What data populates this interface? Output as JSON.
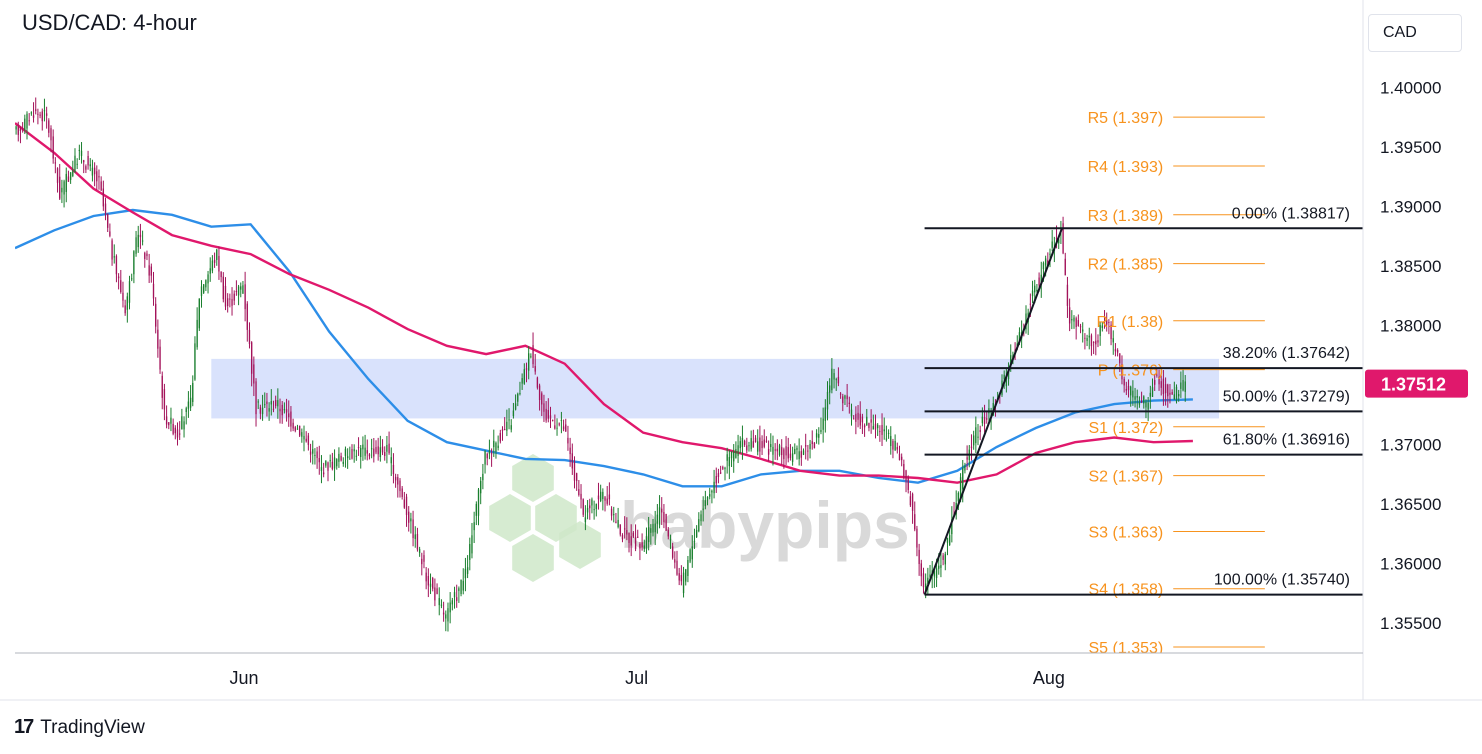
{
  "title": "USD/CAD: 4-hour",
  "currency_button": "CAD",
  "brand": {
    "name": "TradingView",
    "mark": "17",
    "watermark": "babypips"
  },
  "colors": {
    "background": "#ffffff",
    "bull": "#1a7f2e",
    "bear": "#a3135a",
    "ma_fast": "#2d8ee8",
    "ma_slow": "#e0186c",
    "pivot": "#f7931e",
    "zone": "#c9d6fb",
    "price_tag": "#e0186c",
    "fib": "#131722",
    "grid": "#e0e3eb"
  },
  "chart_data": {
    "type": "candlestick",
    "timeframe": "4-hour",
    "ylim": [
      1.3525,
      1.4065
    ],
    "x_ticks": [
      {
        "label": "Jun",
        "day": 17.5
      },
      {
        "label": "Jul",
        "day": 47.5
      },
      {
        "label": "Aug",
        "day": 79
      }
    ],
    "y_ticks": [
      1.355,
      1.36,
      1.365,
      1.37,
      1.375,
      1.38,
      1.385,
      1.39,
      1.395,
      1.4
    ],
    "y_tick_labels": [
      "1.35500",
      "1.36000",
      "1.36500",
      "1.37000",
      "1.37500",
      "1.38000",
      "1.38500",
      "1.39000",
      "1.39500",
      "1.40000"
    ],
    "x_range_days": [
      0,
      103
    ],
    "current_price": 1.37512,
    "current_price_label": "1.37512",
    "price_path": [
      [
        0,
        1.396
      ],
      [
        1.5,
        1.398
      ],
      [
        2.5,
        1.3975
      ],
      [
        3.5,
        1.391
      ],
      [
        5,
        1.3945
      ],
      [
        6.5,
        1.392
      ],
      [
        7.5,
        1.386
      ],
      [
        8.5,
        1.3815
      ],
      [
        9,
        1.3845
      ],
      [
        9.5,
        1.388
      ],
      [
        10.5,
        1.384
      ],
      [
        11.5,
        1.3725
      ],
      [
        12.5,
        1.371
      ],
      [
        13.5,
        1.3735
      ],
      [
        14.2,
        1.383
      ],
      [
        15.5,
        1.386
      ],
      [
        16.2,
        1.3815
      ],
      [
        17.5,
        1.3835
      ],
      [
        18.5,
        1.373
      ],
      [
        20,
        1.3735
      ],
      [
        22,
        1.371
      ],
      [
        23.5,
        1.368
      ],
      [
        26,
        1.3695
      ],
      [
        28.5,
        1.3695
      ],
      [
        30,
        1.3645
      ],
      [
        31.5,
        1.359
      ],
      [
        33,
        1.3555
      ],
      [
        34.5,
        1.359
      ],
      [
        36,
        1.369
      ],
      [
        38,
        1.372
      ],
      [
        39.5,
        1.378
      ],
      [
        40.5,
        1.3725
      ],
      [
        42,
        1.3715
      ],
      [
        43.5,
        1.364
      ],
      [
        45,
        1.366
      ],
      [
        46.5,
        1.3625
      ],
      [
        48,
        1.3615
      ],
      [
        49.5,
        1.3645
      ],
      [
        51,
        1.358
      ],
      [
        52.5,
        1.3645
      ],
      [
        54,
        1.368
      ],
      [
        55.5,
        1.37
      ],
      [
        57,
        1.37
      ],
      [
        59.5,
        1.369
      ],
      [
        61.5,
        1.3705
      ],
      [
        62.5,
        1.376
      ],
      [
        64,
        1.3725
      ],
      [
        66,
        1.3715
      ],
      [
        67.5,
        1.3695
      ],
      [
        68.5,
        1.3655
      ],
      [
        69.5,
        1.358
      ],
      [
        71,
        1.3605
      ],
      [
        73,
        1.37
      ],
      [
        75,
        1.3735
      ],
      [
        76.5,
        1.378
      ],
      [
        78,
        1.383
      ],
      [
        80,
        1.3882
      ],
      [
        80.6,
        1.3805
      ],
      [
        82.5,
        1.3785
      ],
      [
        83.5,
        1.3805
      ],
      [
        85,
        1.3745
      ],
      [
        86.5,
        1.3735
      ],
      [
        87.2,
        1.3755
      ],
      [
        88.5,
        1.374
      ],
      [
        89.5,
        1.3751
      ]
    ],
    "series": [
      {
        "name": "",
        "type": "moving-average",
        "color": "#2d8ee8",
        "points": [
          [
            0,
            1.3865
          ],
          [
            3,
            1.388
          ],
          [
            6,
            1.3892
          ],
          [
            9,
            1.3897
          ],
          [
            12,
            1.3893
          ],
          [
            15,
            1.3883
          ],
          [
            18,
            1.3885
          ],
          [
            21,
            1.3845
          ],
          [
            24,
            1.3795
          ],
          [
            27,
            1.3755
          ],
          [
            30,
            1.372
          ],
          [
            33,
            1.3702
          ],
          [
            36,
            1.3695
          ],
          [
            39,
            1.3688
          ],
          [
            42,
            1.3687
          ],
          [
            45,
            1.3682
          ],
          [
            48,
            1.3675
          ],
          [
            51,
            1.3665
          ],
          [
            54,
            1.3665
          ],
          [
            57,
            1.3675
          ],
          [
            60,
            1.3678
          ],
          [
            63,
            1.3678
          ],
          [
            66,
            1.3672
          ],
          [
            69,
            1.3668
          ],
          [
            72,
            1.3678
          ],
          [
            75,
            1.3698
          ],
          [
            78,
            1.3714
          ],
          [
            81,
            1.3727
          ],
          [
            84,
            1.3734
          ],
          [
            87,
            1.3737
          ],
          [
            90,
            1.3738
          ]
        ]
      },
      {
        "name": "",
        "type": "moving-average",
        "color": "#e0186c",
        "points": [
          [
            0,
            1.397
          ],
          [
            3,
            1.3945
          ],
          [
            6,
            1.3915
          ],
          [
            9,
            1.3895
          ],
          [
            12,
            1.3876
          ],
          [
            15,
            1.3867
          ],
          [
            18,
            1.386
          ],
          [
            21,
            1.3843
          ],
          [
            24,
            1.383
          ],
          [
            27,
            1.3815
          ],
          [
            30,
            1.3797
          ],
          [
            33,
            1.3783
          ],
          [
            36,
            1.3776
          ],
          [
            39,
            1.3783
          ],
          [
            42,
            1.3768
          ],
          [
            45,
            1.3734
          ],
          [
            48,
            1.371
          ],
          [
            51,
            1.3702
          ],
          [
            54,
            1.3697
          ],
          [
            57,
            1.3688
          ],
          [
            60,
            1.3678
          ],
          [
            63,
            1.3674
          ],
          [
            66,
            1.3674
          ],
          [
            69,
            1.3672
          ],
          [
            72,
            1.3668
          ],
          [
            75,
            1.3675
          ],
          [
            78,
            1.3693
          ],
          [
            81,
            1.3702
          ],
          [
            84,
            1.3706
          ],
          [
            87,
            1.3702
          ],
          [
            90,
            1.3703
          ]
        ]
      }
    ],
    "zone": {
      "y_from": 1.3722,
      "y_to": 1.3772,
      "x_from": 15,
      "x_to": 92
    },
    "fibonacci": {
      "x_from": 69.5,
      "x_to": 103,
      "levels": [
        {
          "label": "0.00% (1.38817)",
          "value": 1.38817
        },
        {
          "label": "38.20% (1.37642)",
          "value": 1.37642
        },
        {
          "label": "50.00% (1.37279)",
          "value": 1.37279
        },
        {
          "label": "61.80% (1.36916)",
          "value": 1.36916
        },
        {
          "label": "100.00% (1.35740)",
          "value": 1.3574
        }
      ],
      "swing": {
        "from": [
          69.5,
          1.3574
        ],
        "to": [
          80,
          1.38817
        ]
      }
    },
    "pivots": {
      "x_from": 88.5,
      "x_to": 95.5,
      "levels": [
        {
          "label": "R5 (1.397)",
          "value": 1.3975
        },
        {
          "label": "R4 (1.393)",
          "value": 1.3934
        },
        {
          "label": "R3 (1.389)",
          "value": 1.3893
        },
        {
          "label": "R2 (1.385)",
          "value": 1.3852
        },
        {
          "label": "R1 (1.38)",
          "value": 1.3804
        },
        {
          "label": "P (1.376)",
          "value": 1.3763
        },
        {
          "label": "S1 (1.372)",
          "value": 1.3715
        },
        {
          "label": "S2 (1.367)",
          "value": 1.3674
        },
        {
          "label": "S3 (1.363)",
          "value": 1.3627
        },
        {
          "label": "S4 (1.358)",
          "value": 1.3579
        },
        {
          "label": "S5 (1.353)",
          "value": 1.353
        }
      ]
    }
  }
}
